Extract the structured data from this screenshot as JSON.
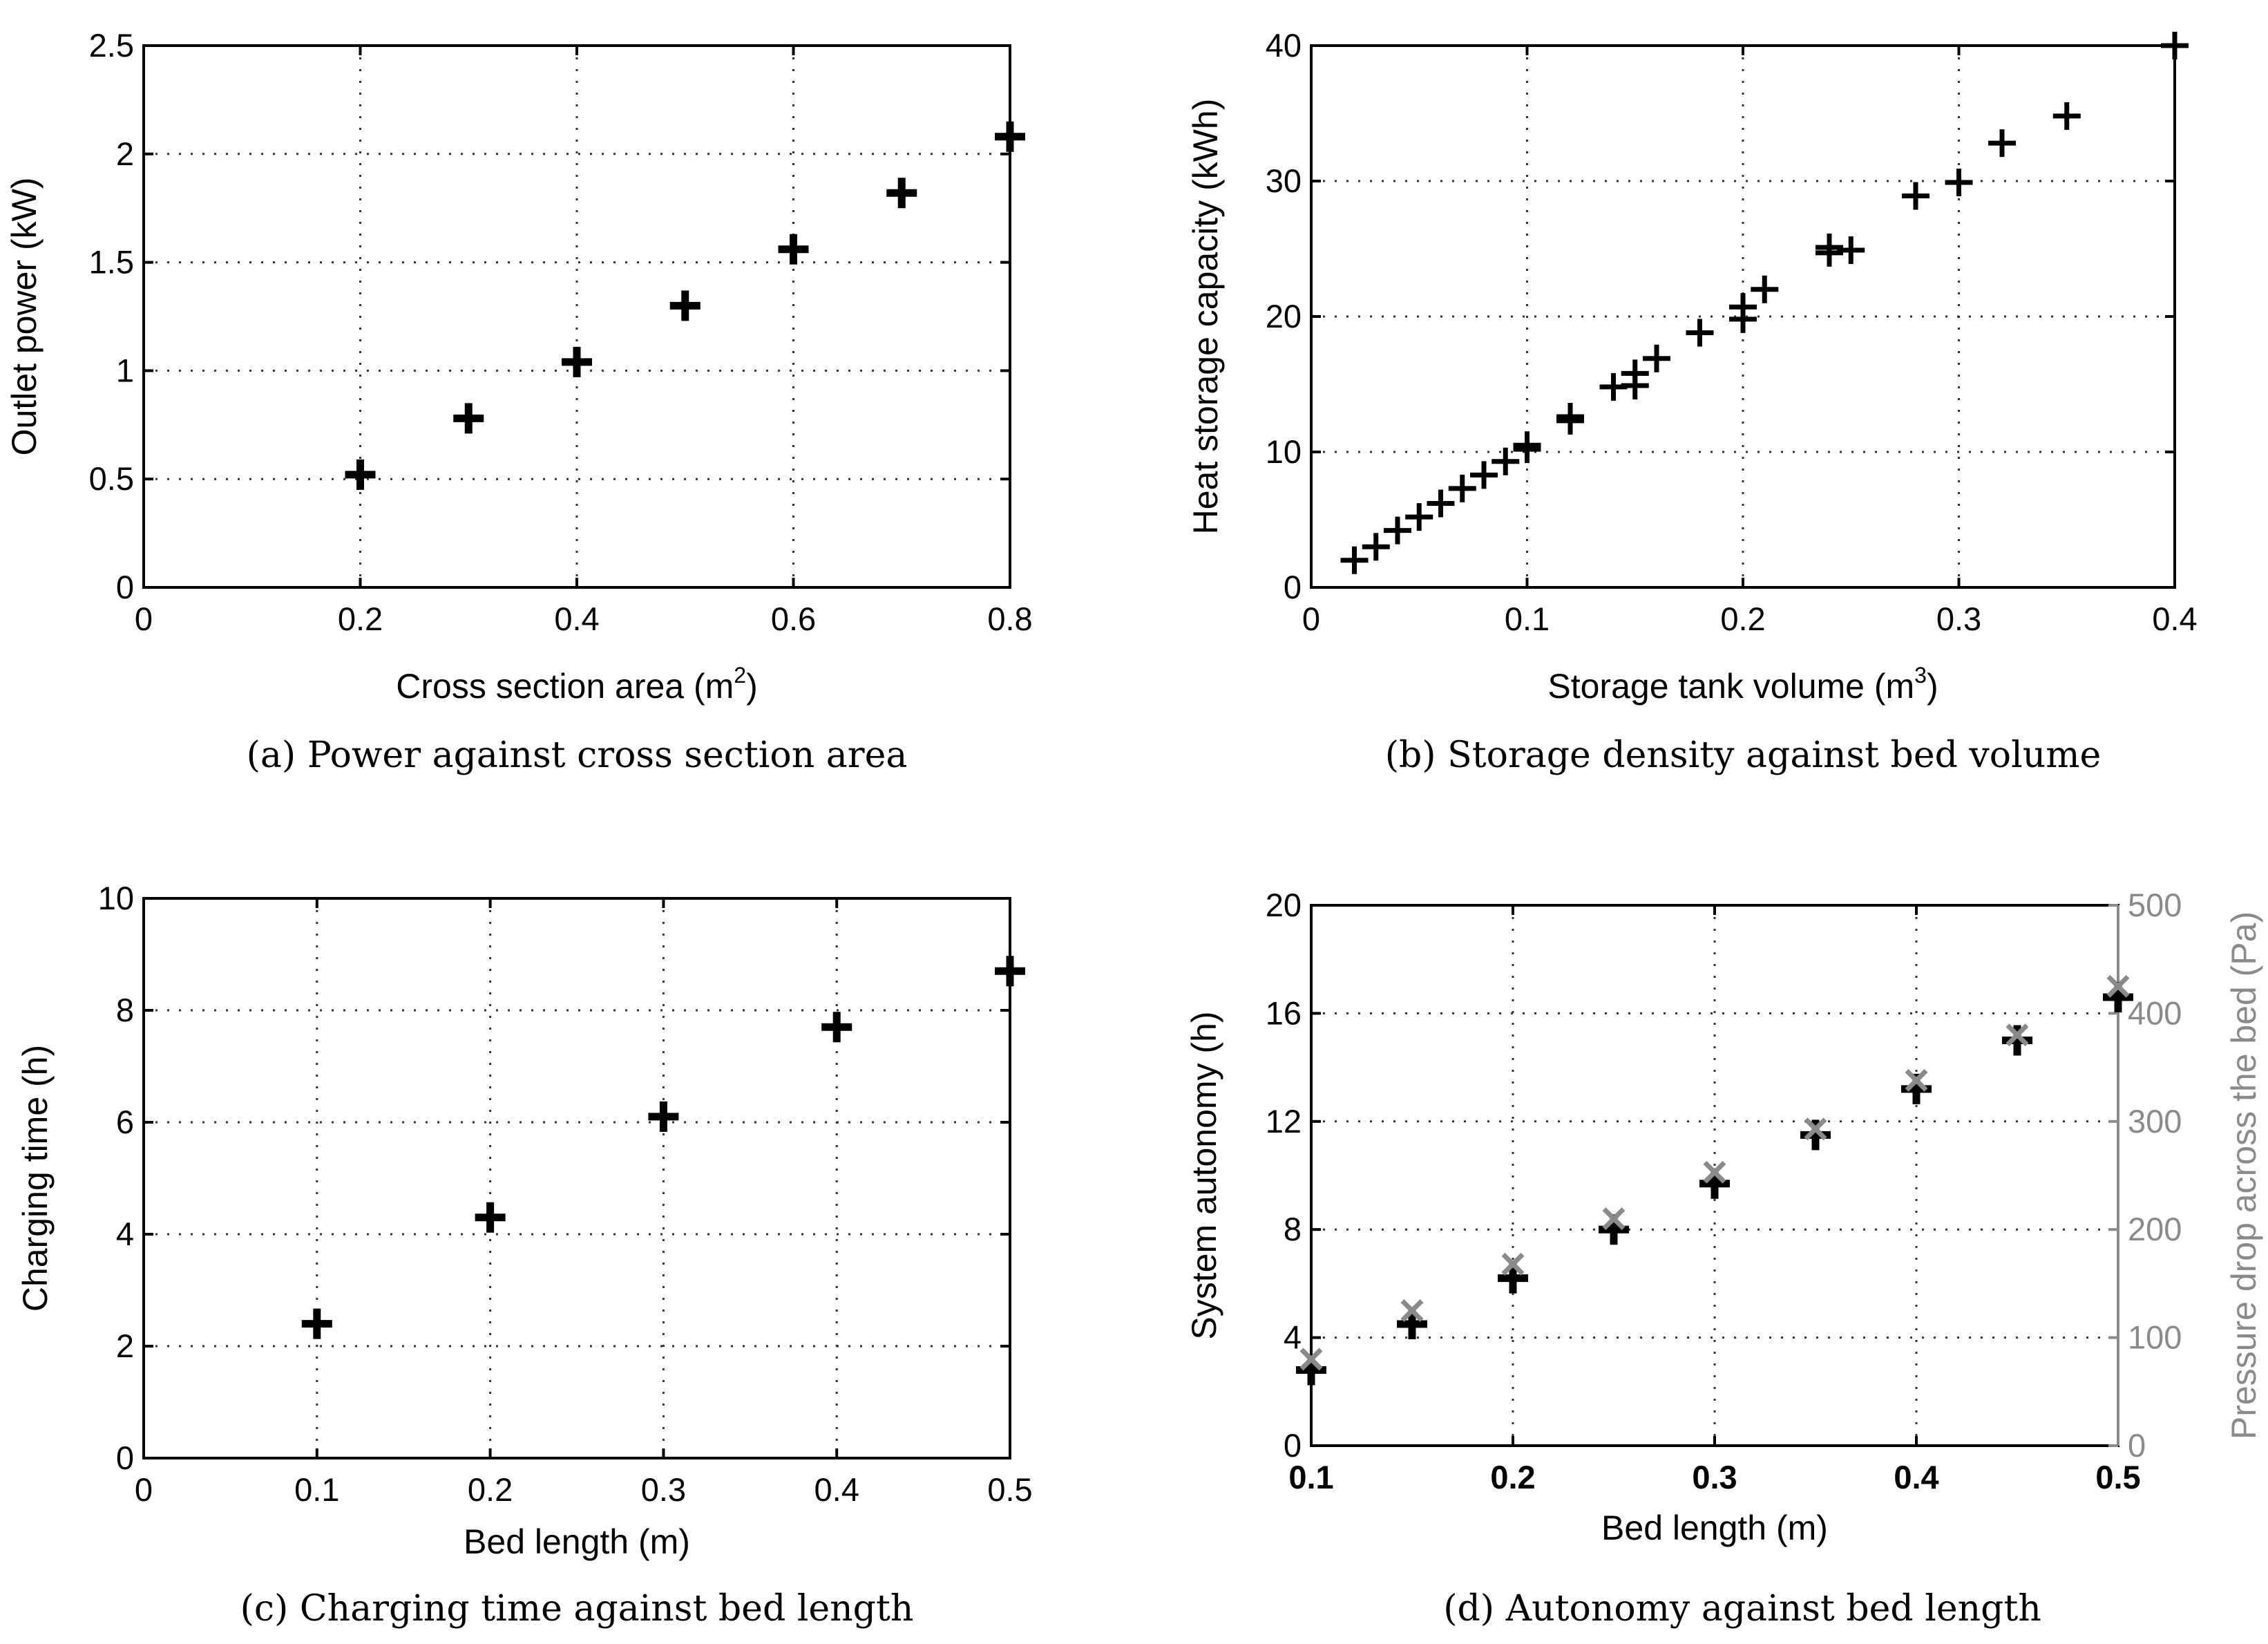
{
  "chart_data": [
    {
      "id": "a",
      "type": "scatter",
      "caption": "(a) Power against cross section area",
      "xlabel": "Cross section area (m",
      "xlabel_sup": "2",
      "xlabel_suffix": ")",
      "ylabel": "Outlet power (kW)",
      "xlim": [
        0,
        0.8
      ],
      "ylim": [
        0,
        2.5
      ],
      "xticks": [
        0,
        0.2,
        0.4,
        0.6,
        0.8
      ],
      "xtick_labels": [
        "0",
        "0.2",
        "0.4",
        "0.6",
        "0.8"
      ],
      "yticks": [
        0,
        0.5,
        1,
        1.5,
        2,
        2.5
      ],
      "ytick_labels": [
        "0",
        "0.5",
        "1",
        "1.5",
        "2",
        "2.5"
      ],
      "grid": true,
      "marker": "plus-bold",
      "series": [
        {
          "name": "Outlet power",
          "x": [
            0.2,
            0.3,
            0.4,
            0.5,
            0.6,
            0.7,
            0.8
          ],
          "y": [
            0.52,
            0.78,
            1.04,
            1.3,
            1.56,
            1.82,
            2.08
          ]
        }
      ]
    },
    {
      "id": "b",
      "type": "scatter",
      "caption": "(b) Storage density against bed volume",
      "xlabel": "Storage tank volume (m",
      "xlabel_sup": "3",
      "xlabel_suffix": ")",
      "ylabel": "Heat storage capacity (kWh)",
      "xlim": [
        0,
        0.4
      ],
      "ylim": [
        0,
        40
      ],
      "xticks": [
        0,
        0.1,
        0.2,
        0.3,
        0.4
      ],
      "xtick_labels": [
        "0",
        "0.1",
        "0.2",
        "0.3",
        "0.4"
      ],
      "yticks": [
        0,
        10,
        20,
        30,
        40
      ],
      "ytick_labels": [
        "0",
        "10",
        "20",
        "30",
        "40"
      ],
      "grid": true,
      "marker": "plus",
      "series": [
        {
          "name": "Heat storage capacity",
          "x": [
            0.02,
            0.03,
            0.04,
            0.05,
            0.06,
            0.07,
            0.08,
            0.09,
            0.1,
            0.1,
            0.12,
            0.12,
            0.14,
            0.15,
            0.15,
            0.16,
            0.18,
            0.2,
            0.2,
            0.21,
            0.24,
            0.24,
            0.25,
            0.28,
            0.3,
            0.32,
            0.35,
            0.4
          ],
          "y": [
            2,
            3,
            4.2,
            5.2,
            6.2,
            7.3,
            8.3,
            9.3,
            10.2,
            10.5,
            12.3,
            12.6,
            14.8,
            14.9,
            15.8,
            16.9,
            18.8,
            19.8,
            20.7,
            22,
            24.7,
            25.1,
            24.9,
            28.9,
            29.9,
            32.8,
            34.8,
            40
          ]
        }
      ]
    },
    {
      "id": "c",
      "type": "scatter",
      "caption": "(c) Charging time against bed length",
      "xlabel": "Bed length (m)",
      "ylabel": "Charging time (h)",
      "xlim": [
        0,
        0.5
      ],
      "ylim": [
        0,
        10
      ],
      "xticks": [
        0,
        0.1,
        0.2,
        0.3,
        0.4,
        0.5
      ],
      "xtick_labels": [
        "0",
        "0.1",
        "0.2",
        "0.3",
        "0.4",
        "0.5"
      ],
      "yticks": [
        0,
        2,
        4,
        6,
        8,
        10
      ],
      "ytick_labels": [
        "0",
        "2",
        "4",
        "6",
        "8",
        "10"
      ],
      "grid": true,
      "marker": "plus-bold",
      "series": [
        {
          "name": "Charging time",
          "x": [
            0.1,
            0.2,
            0.3,
            0.4,
            0.5
          ],
          "y": [
            2.4,
            4.3,
            6.1,
            7.7,
            8.7
          ]
        }
      ]
    },
    {
      "id": "d",
      "type": "scatter",
      "caption": "(d) Autonomy against bed length",
      "xlabel": "Bed length (m)",
      "ylabel": "System autonomy (h)",
      "y2label": "Pressure drop across the bed (Pa)",
      "xlim": [
        0.1,
        0.5
      ],
      "ylim": [
        0,
        20
      ],
      "y2lim": [
        0,
        500
      ],
      "xticks": [
        0.1,
        0.2,
        0.3,
        0.4,
        0.5
      ],
      "xtick_labels": [
        "0.1",
        "0.2",
        "0.3",
        "0.4",
        "0.5"
      ],
      "yticks": [
        0,
        4,
        8,
        12,
        16,
        20
      ],
      "ytick_labels": [
        "0",
        "4",
        "8",
        "12",
        "16",
        "20"
      ],
      "y2ticks": [
        0,
        100,
        200,
        300,
        400,
        500
      ],
      "y2tick_labels": [
        "0",
        "100",
        "200",
        "300",
        "400",
        "500"
      ],
      "grid": true,
      "series": [
        {
          "name": "System autonomy",
          "axis": "left",
          "marker": "plus-bold",
          "color": "#000000",
          "x": [
            0.1,
            0.15,
            0.2,
            0.25,
            0.3,
            0.35,
            0.4,
            0.45,
            0.5
          ],
          "y": [
            2.8,
            4.5,
            6.2,
            8.0,
            9.7,
            11.5,
            13.2,
            15.0,
            16.6
          ]
        },
        {
          "name": "Pressure drop across the bed",
          "axis": "right",
          "marker": "x",
          "color": "#8a8a8a",
          "x": [
            0.1,
            0.15,
            0.2,
            0.25,
            0.3,
            0.35,
            0.4,
            0.45,
            0.5
          ],
          "y": [
            80,
            125,
            168,
            210,
            253,
            293,
            338,
            380,
            425
          ]
        }
      ]
    }
  ]
}
